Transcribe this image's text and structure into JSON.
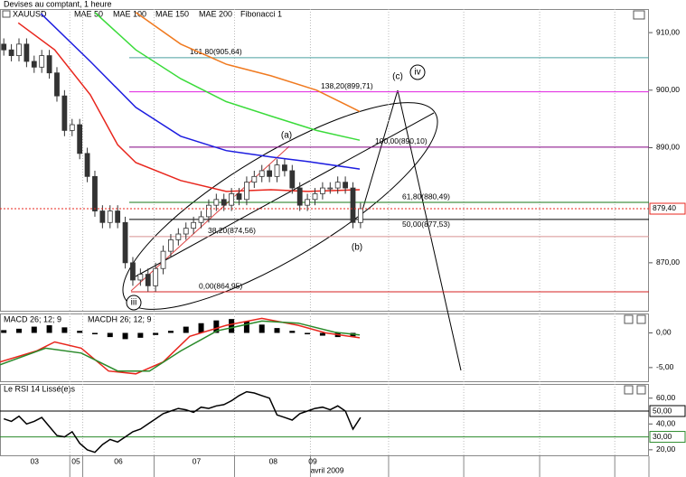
{
  "chart_data": [
    {
      "type": "candlestick",
      "title": "Devises au comptant, 1 heure",
      "symbol": "XAUUSD",
      "open": [
        908,
        907,
        906,
        908,
        905,
        904,
        906,
        903,
        899,
        893,
        894,
        889,
        885,
        879,
        877,
        879,
        877,
        870,
        867,
        868,
        866,
        869,
        872,
        874,
        875,
        876,
        877,
        878,
        880,
        881,
        880,
        882,
        881,
        884,
        885,
        886,
        885,
        887,
        886,
        883,
        880,
        881,
        882,
        883,
        883,
        884,
        883,
        877
      ],
      "high": [
        909,
        908,
        909,
        909,
        906,
        907,
        907,
        904,
        900,
        895,
        895,
        890,
        886,
        880,
        880,
        880,
        878,
        871,
        869,
        869,
        870,
        873,
        875,
        876,
        877,
        878,
        879,
        881,
        882,
        882,
        883,
        883,
        885,
        886,
        887,
        887,
        888,
        888,
        887,
        884,
        882,
        883,
        884,
        884,
        885,
        885,
        884,
        880.4
      ],
      "low": [
        906,
        905,
        905,
        904,
        903,
        903,
        902,
        898,
        892,
        892,
        888,
        884,
        878,
        876,
        876,
        876,
        869,
        866,
        866,
        865,
        865,
        868,
        871,
        873,
        874,
        875,
        876,
        877,
        879,
        879,
        879,
        880,
        880,
        883,
        884,
        884,
        884,
        885,
        882,
        879,
        879,
        880,
        881,
        882,
        882,
        882,
        876,
        876
      ],
      "close": [
        907,
        906,
        908,
        905,
        904,
        906,
        903,
        899,
        893,
        894,
        889,
        885,
        879,
        877,
        879,
        877,
        870,
        867,
        868,
        866,
        869,
        872,
        874,
        875,
        876,
        877,
        878,
        880,
        881,
        880,
        882,
        881,
        884,
        885,
        886,
        885,
        887,
        886,
        883,
        880,
        881,
        882,
        883,
        883,
        884,
        883,
        877,
        879.4
      ],
      "series": [
        {
          "name": "MAE 50",
          "color": "#e8261d",
          "x": [
            1.9,
            6.7,
            11.4,
            15,
            17.4,
            23.3,
            29.3,
            35.2,
            40,
            46.9
          ],
          "values": [
            911.7,
            907,
            899.2,
            890.5,
            887.4,
            884.3,
            882.4,
            882.7,
            882.4,
            882.7
          ]
        },
        {
          "name": "MAE 100",
          "color": "#1d1de0",
          "x": [
            4.9,
            11.4,
            17.4,
            23.3,
            29.3,
            35.2,
            40,
            46.9
          ],
          "values": [
            913.3,
            905,
            897,
            892,
            889.5,
            888.4,
            887.6,
            886.3
          ]
        },
        {
          "name": "MAE 150",
          "color": "#3adb3a",
          "x": [
            12,
            17.4,
            23.3,
            29.3,
            35.2,
            41.2,
            46.9
          ],
          "values": [
            913.5,
            907,
            902,
            898,
            895.5,
            893,
            891.3
          ]
        },
        {
          "name": "MAE 200",
          "color": "#f07a20",
          "x": [
            17.4,
            23.3,
            29.3,
            35.2,
            41.2,
            46.9
          ],
          "values": [
            913.5,
            908,
            904.5,
            902.5,
            900,
            896.3
          ]
        }
      ],
      "fibonacci": {
        "name": "Fibonacci 1",
        "levels": [
          {
            "value": 905.64,
            "label": "161,80(905,64)",
            "color": "#4aa0a0"
          },
          {
            "value": 899.71,
            "label": "138,20(899,71)",
            "color": "#e020e0"
          },
          {
            "value": 890.1,
            "label": "100,00(890,10)",
            "color": "#800080"
          },
          {
            "value": 880.49,
            "label": "61,80(880,49)",
            "color": "#1a7a1a"
          },
          {
            "value": 877.53,
            "label": "50,00(877,53)",
            "color": "#000000"
          },
          {
            "value": 874.56,
            "label": "38,20(874,56)",
            "color": "#d89090"
          },
          {
            "value": 864.95,
            "label": "0,00(864,95)",
            "color": "#d42020"
          }
        ]
      },
      "last": {
        "value": 879.4,
        "label": "879,40",
        "color": "#e8261d"
      },
      "annotations": [
        "(a)",
        "(b)",
        "(c)",
        "iii",
        "iv"
      ],
      "xlim": [
        -0.5,
        85
      ],
      "ylim": [
        861.5,
        914.1
      ],
      "yticks": [
        {
          "value": 910,
          "label": "910,00"
        },
        {
          "value": 900,
          "label": "900,00"
        },
        {
          "value": 890,
          "label": "890,00"
        },
        {
          "value": 870,
          "label": "870,00"
        }
      ],
      "xticks": [
        {
          "value": 4.05,
          "label": "03"
        },
        {
          "value": 9.5,
          "label": "05"
        },
        {
          "value": 15.1,
          "label": "06"
        },
        {
          "value": 25.4,
          "label": "07"
        },
        {
          "value": 35.5,
          "label": "08"
        },
        {
          "value": 40.7,
          "label": "09"
        }
      ],
      "xgrid": [
        8.7,
        10.4,
        19.8,
        30.4,
        40.4,
        50.7,
        60.6,
        70.6,
        80.5
      ],
      "xlabel": "avril 2009"
    },
    {
      "type": "line",
      "series": [
        {
          "name": "MACD 26; 12; 9",
          "color": "#e8261d",
          "x": [
            -0.5,
            4.3,
            6.7,
            10.2,
            13.8,
            17.4,
            21,
            24.5,
            29.3,
            34,
            38.8,
            42.4,
            46.9
          ],
          "values": [
            -4.2,
            -2.6,
            -1.3,
            -2.2,
            -5.5,
            -5.9,
            -4.2,
            -0.5,
            1.1,
            2.1,
            1.1,
            0,
            -0.7
          ]
        },
        {
          "color": "#2a8a2a",
          "x": [
            -0.5,
            5.5,
            10.2,
            15,
            19.2,
            23.3,
            28.1,
            34,
            38.8,
            43.6,
            46.9
          ],
          "values": [
            -4.6,
            -2.2,
            -2.9,
            -5.5,
            -5.5,
            -2.6,
            0.3,
            1.7,
            1.4,
            0.1,
            -0.3
          ]
        }
      ],
      "histogram": {
        "name": "MACDH 26; 12; 9",
        "color": "#000000",
        "x": [
          0,
          2,
          4,
          6,
          8,
          10,
          12,
          14,
          16,
          18,
          20,
          22,
          24,
          26,
          28,
          30,
          32,
          34,
          36,
          38,
          40,
          42,
          44,
          46
        ],
        "values": [
          0.4,
          0.6,
          0.9,
          1.1,
          0.8,
          0.3,
          -0.2,
          -0.6,
          -0.9,
          -0.7,
          -0.3,
          0.3,
          0.9,
          1.4,
          1.8,
          2.0,
          1.7,
          1.2,
          0.7,
          0.3,
          -0.2,
          -0.4,
          -0.6,
          -0.5
        ]
      },
      "ylim": [
        -7.1,
        2.8
      ],
      "yticks": [
        {
          "value": 0,
          "label": "0,00"
        },
        {
          "value": -5,
          "label": "-5,00"
        }
      ]
    },
    {
      "type": "line",
      "series": [
        {
          "name": "Le RSI 14 Lissé(e)s",
          "color": "#000000",
          "values": [
            44,
            42,
            46,
            40,
            42,
            45,
            38,
            31,
            30,
            34,
            25,
            20,
            18,
            24,
            28,
            26,
            30,
            34,
            36,
            40,
            44,
            48,
            50,
            52,
            51,
            49,
            53,
            52,
            54,
            55,
            58,
            62,
            65,
            64,
            62,
            60,
            47,
            45,
            43,
            48,
            50,
            52,
            53,
            51,
            54,
            50,
            36,
            45
          ]
        }
      ],
      "levels": [
        {
          "value": 50,
          "label": "50,00",
          "color": "#000000"
        },
        {
          "value": 30,
          "label": "30,00",
          "color": "#2a8a2a"
        }
      ],
      "ylim": [
        15,
        71
      ],
      "yticks": [
        {
          "value": 60,
          "label": "60,00"
        },
        {
          "value": 40,
          "label": "40,00"
        },
        {
          "value": 20,
          "label": "20,00"
        }
      ]
    }
  ]
}
